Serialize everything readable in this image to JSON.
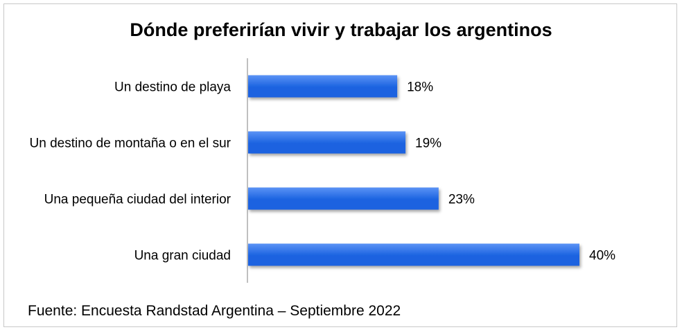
{
  "chart_data": {
    "type": "bar",
    "orientation": "horizontal",
    "title": "Dónde preferirían vivir y trabajar los argentinos",
    "categories": [
      "Un destino de playa",
      "Un destino de montaña o en el sur",
      "Una pequeña ciudad del interior",
      "Una gran ciudad"
    ],
    "values": [
      18,
      19,
      23,
      40
    ],
    "value_labels": [
      "18%",
      "19%",
      "23%",
      "40%"
    ],
    "unit": "%",
    "xlim": [
      0,
      40
    ],
    "grid": false,
    "bar_color": "#1a62e0",
    "bar_color_light": "#5b93f5",
    "xlabel": "",
    "ylabel": ""
  },
  "source": "Fuente: Encuesta Randstad Argentina – Septiembre 2022",
  "colors": {
    "frame_border": "#c8c8c8",
    "axis": "#808080",
    "text": "#000000"
  }
}
